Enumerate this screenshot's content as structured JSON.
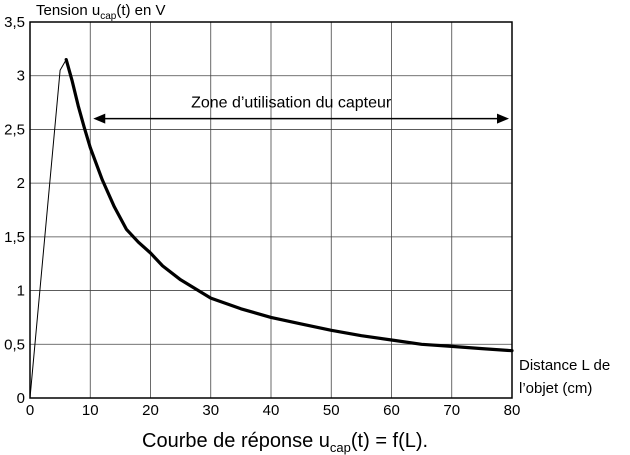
{
  "chart_data": {
    "type": "line",
    "ylabel": {
      "text": "Tension u",
      "sub": "cap",
      "rest": "(t) en V"
    },
    "xlabel": {
      "line1": "Distance L de",
      "line2": "l’objet (cm)"
    },
    "caption": {
      "text": "Courbe de réponse u",
      "sub": "cap",
      "rest": "(t) = f(L)."
    },
    "annotation": {
      "text": "Zone d’utilisation du capteur",
      "x_from": 10,
      "x_to": 80,
      "y": 2.6
    },
    "xlim": [
      0,
      80
    ],
    "ylim": [
      0,
      3.5
    ],
    "x_ticks": [
      0,
      10,
      20,
      30,
      40,
      50,
      60,
      70,
      80
    ],
    "x_tick_labels": [
      "0",
      "10",
      "20",
      "30",
      "40",
      "50",
      "60",
      "70",
      "80"
    ],
    "y_ticks": [
      0,
      0.5,
      1,
      1.5,
      2,
      2.5,
      3,
      3.5
    ],
    "y_tick_labels": [
      "0",
      "0,5",
      "1",
      "1,5",
      "2",
      "2,5",
      "3",
      "3,5"
    ],
    "grid": true,
    "series": [
      {
        "style": "thin",
        "x": [
          0,
          5,
          6
        ],
        "y": [
          0,
          3.05,
          3.15
        ]
      },
      {
        "style": "thick",
        "x": [
          6,
          7,
          8,
          9,
          10,
          12,
          14,
          16,
          18,
          20,
          22,
          25,
          30,
          35,
          40,
          45,
          50,
          55,
          60,
          65,
          70,
          75,
          80
        ],
        "y": [
          3.15,
          2.95,
          2.72,
          2.52,
          2.33,
          2.03,
          1.78,
          1.57,
          1.45,
          1.35,
          1.23,
          1.1,
          0.93,
          0.83,
          0.75,
          0.69,
          0.63,
          0.58,
          0.54,
          0.5,
          0.48,
          0.46,
          0.44
        ]
      }
    ]
  }
}
